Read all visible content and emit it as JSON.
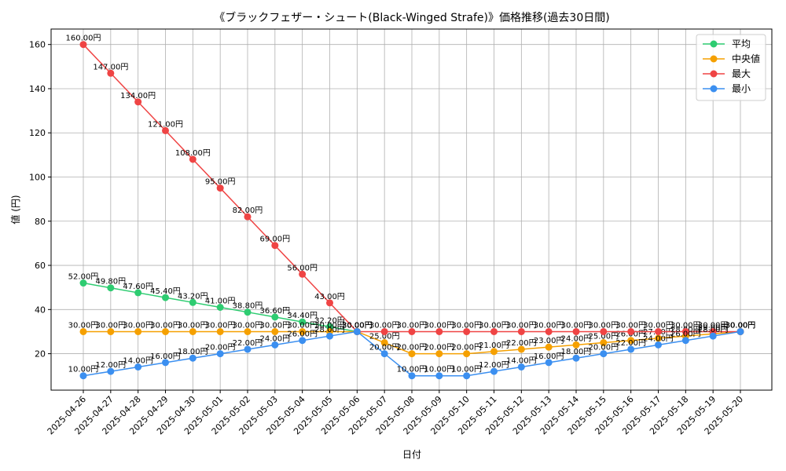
{
  "chart_data": {
    "type": "line",
    "title": "《ブラックフェザー・シュート(Black-Winged Strafe)》価格推移(過去30日間)",
    "xlabel": "日付",
    "ylabel": "値 (円)",
    "ylim": [
      3.5,
      167
    ],
    "yticks": [
      20,
      40,
      60,
      80,
      100,
      120,
      140,
      160
    ],
    "grid": true,
    "legend_position": "top-right",
    "value_suffix": "円",
    "categories": [
      "2025-04-26",
      "2025-04-27",
      "2025-04-28",
      "2025-04-29",
      "2025-04-30",
      "2025-05-01",
      "2025-05-02",
      "2025-05-03",
      "2025-05-04",
      "2025-05-05",
      "2025-05-06",
      "2025-05-07",
      "2025-05-08",
      "2025-05-09",
      "2025-05-10",
      "2025-05-11",
      "2025-05-12",
      "2025-05-13",
      "2025-05-14",
      "2025-05-15",
      "2025-05-16",
      "2025-05-17",
      "2025-05-18",
      "2025-05-19",
      "2025-05-20"
    ],
    "series": [
      {
        "name": "平均",
        "color": "#2ecc71",
        "values": [
          52.0,
          49.8,
          47.6,
          45.4,
          43.2,
          41.0,
          38.8,
          36.6,
          34.4,
          32.2,
          30.0,
          null,
          null,
          null,
          null,
          null,
          null,
          null,
          null,
          null,
          null,
          null,
          null,
          null,
          30.0
        ]
      },
      {
        "name": "中央値",
        "color": "#f5a000",
        "values": [
          30.0,
          30.0,
          30.0,
          30.0,
          30.0,
          30.0,
          30.0,
          30.0,
          30.0,
          30.0,
          30.0,
          25.0,
          20.0,
          20.0,
          20.0,
          21.0,
          22.0,
          23.0,
          24.0,
          25.0,
          26.0,
          27.0,
          28.0,
          29.0,
          30.0
        ]
      },
      {
        "name": "最大",
        "color": "#ef4444",
        "values": [
          160.0,
          147.0,
          134.0,
          121.0,
          108.0,
          95.0,
          82.0,
          69.0,
          56.0,
          43.0,
          30.0,
          30.0,
          30.0,
          30.0,
          30.0,
          30.0,
          30.0,
          30.0,
          30.0,
          30.0,
          30.0,
          30.0,
          30.0,
          30.0,
          30.0
        ]
      },
      {
        "name": "最小",
        "color": "#3b8ff0",
        "values": [
          10.0,
          12.0,
          14.0,
          16.0,
          18.0,
          20.0,
          22.0,
          24.0,
          26.0,
          28.0,
          30.0,
          20.0,
          10.0,
          10.0,
          10.0,
          12.0,
          14.0,
          16.0,
          18.0,
          20.0,
          22.0,
          24.0,
          26.0,
          28.0,
          30.0
        ]
      }
    ]
  }
}
